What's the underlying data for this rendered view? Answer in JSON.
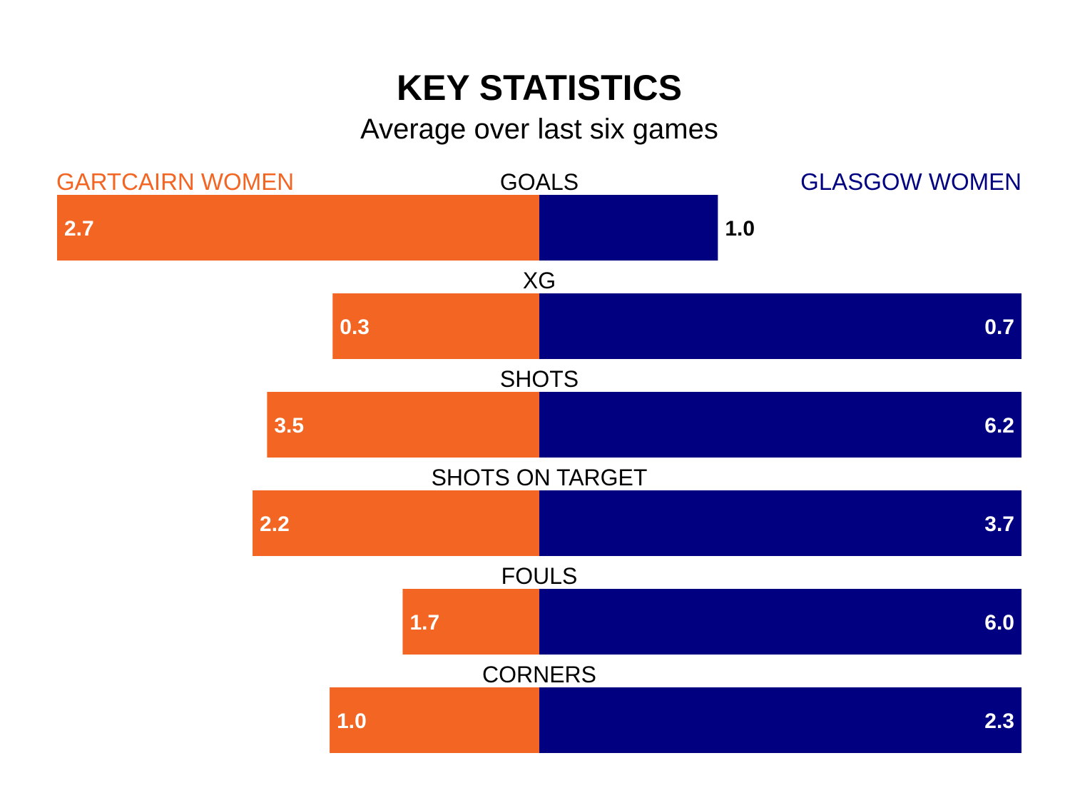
{
  "chart_data": {
    "type": "bar",
    "title": "KEY STATISTICS",
    "subtitle": "Average over last six games",
    "categories": [
      "GOALS",
      "XG",
      "SHOTS",
      "SHOTS ON TARGET",
      "FOULS",
      "CORNERS"
    ],
    "series": [
      {
        "name": "GARTCAIRN WOMEN",
        "color": "#f26522",
        "values": [
          2.7,
          0.3,
          3.5,
          2.2,
          1.7,
          1.0
        ],
        "labels": [
          "2.7",
          "0.3",
          "3.5",
          "2.2",
          "1.7",
          "1.0"
        ]
      },
      {
        "name": "GLASGOW WOMEN",
        "color": "#000080",
        "values": [
          1.0,
          0.7,
          6.2,
          3.7,
          6.0,
          2.3
        ],
        "labels": [
          "1.0",
          "0.7",
          "6.2",
          "3.7",
          "6.0",
          "2.3"
        ]
      }
    ],
    "value_label_color_inside": "#ffffff",
    "value_label_color_outside": "#000000"
  }
}
